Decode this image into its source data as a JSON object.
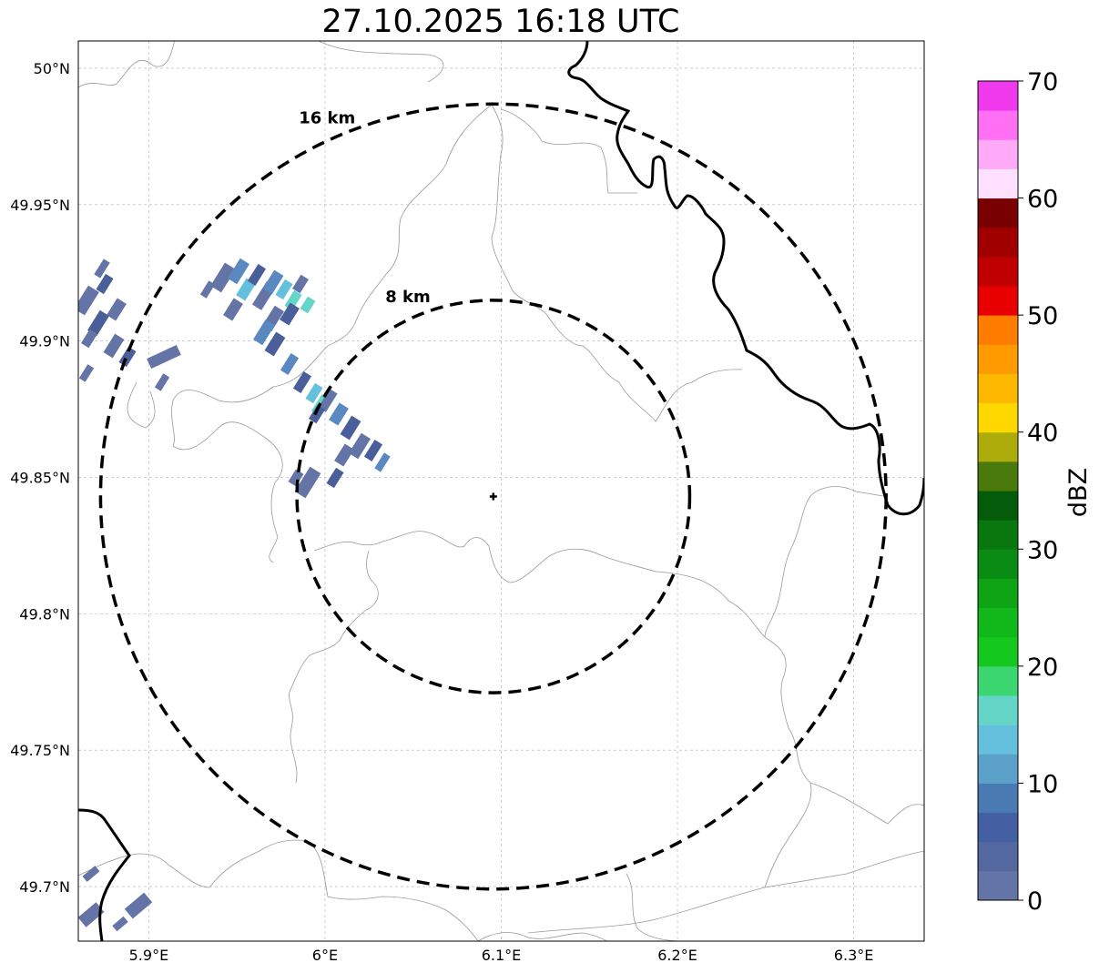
{
  "title": "27.10.2025 16:18 UTC",
  "map": {
    "lon_range": [
      5.86,
      6.34
    ],
    "lat_range": [
      49.68,
      50.01
    ],
    "lon_ticks": [
      {
        "value": 5.9,
        "label": "5.9°E"
      },
      {
        "value": 6.0,
        "label": "6°E"
      },
      {
        "value": 6.1,
        "label": "6.1°E"
      },
      {
        "value": 6.2,
        "label": "6.2°E"
      },
      {
        "value": 6.3,
        "label": "6.3°E"
      }
    ],
    "lat_ticks": [
      {
        "value": 50.0,
        "label": "50°N"
      },
      {
        "value": 49.95,
        "label": "49.95°N"
      },
      {
        "value": 49.9,
        "label": "49.9°N"
      },
      {
        "value": 49.85,
        "label": "49.85°N"
      },
      {
        "value": 49.8,
        "label": "49.8°N"
      },
      {
        "value": 49.75,
        "label": "49.75°N"
      },
      {
        "value": 49.7,
        "label": "49.7°N"
      }
    ],
    "radar_site": {
      "lon": 6.0955,
      "lat": 49.843
    },
    "range_rings": [
      {
        "radius_km": 8,
        "label": "8 km"
      },
      {
        "radius_km": 16,
        "label": "16 km"
      }
    ],
    "gridlines": true
  },
  "colorbar": {
    "label": "dBZ",
    "min": 0,
    "max": 70,
    "tick_labels": [
      "0",
      "10",
      "20",
      "30",
      "40",
      "50",
      "60",
      "70"
    ],
    "colors": [
      "#6474a6",
      "#5468a0",
      "#4460a2",
      "#4a7ab2",
      "#5aa0c8",
      "#64c0dc",
      "#64d6c8",
      "#3cd670",
      "#14c81e",
      "#10b81a",
      "#0ea414",
      "#0a8c14",
      "#08780e",
      "#045c0a",
      "#4a7a0c",
      "#acac0a",
      "#ffd800",
      "#ffb800",
      "#ff9a00",
      "#ff7c00",
      "#e80000",
      "#c00000",
      "#a00000",
      "#780000",
      "#ffe0fe",
      "#ffaaf8",
      "#ff70f4",
      "#f038ec"
    ]
  },
  "echo_colors": {
    "base": "#6474a6",
    "dark": "#4a5e9a",
    "mid": "#5a88c0",
    "light": "#64c0dc",
    "cyan": "#64d6c8"
  }
}
